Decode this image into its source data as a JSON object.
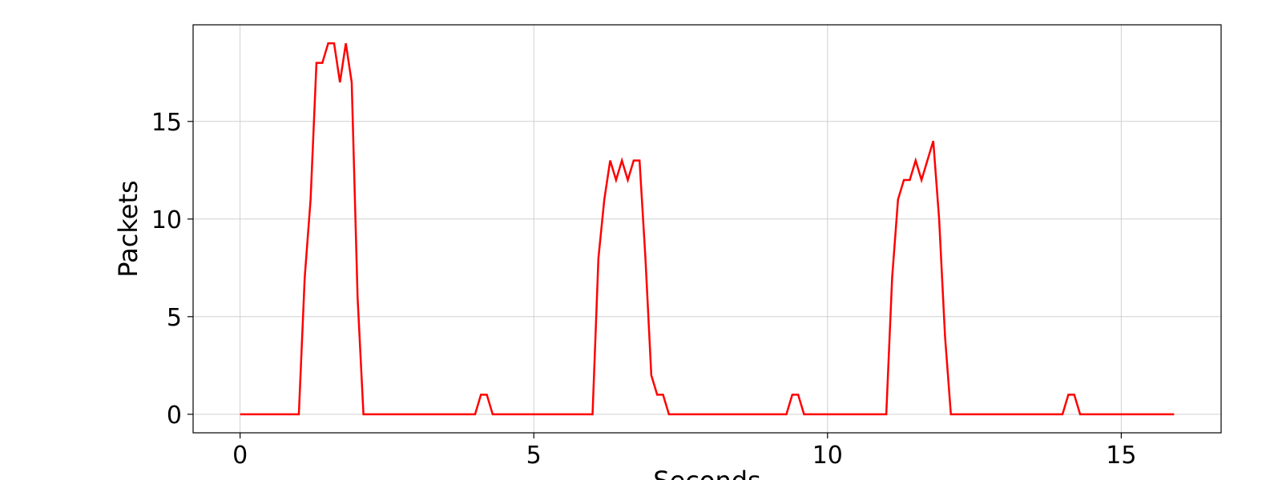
{
  "chart_data": {
    "type": "line",
    "title": "",
    "xlabel": "Seconds",
    "ylabel": "Packets",
    "xlim": [
      -0.8,
      16.7
    ],
    "ylim": [
      -0.95,
      19.95
    ],
    "grid": true,
    "xticks": [
      0,
      5,
      10,
      15
    ],
    "yticks": [
      0,
      5,
      10,
      15
    ],
    "series": [
      {
        "color": "#ff0000",
        "x": [
          0,
          0.1,
          0.2,
          0.3,
          0.4,
          0.5,
          0.6,
          0.7,
          0.8,
          0.9,
          1.0,
          1.1,
          1.2,
          1.3,
          1.4,
          1.5,
          1.6,
          1.7,
          1.8,
          1.9,
          2.0,
          2.1,
          2.2,
          2.3,
          2.4,
          2.5,
          2.6,
          2.7,
          2.8,
          2.9,
          3.0,
          3.1,
          3.2,
          3.3,
          3.4,
          3.5,
          3.6,
          3.7,
          3.8,
          3.9,
          4.0,
          4.1,
          4.2,
          4.3,
          4.4,
          4.5,
          4.6,
          4.7,
          4.8,
          4.9,
          5.0,
          5.1,
          5.2,
          5.3,
          5.4,
          5.5,
          5.6,
          5.7,
          5.8,
          5.9,
          6.0,
          6.1,
          6.2,
          6.3,
          6.4,
          6.5,
          6.6,
          6.7,
          6.8,
          6.9,
          7.0,
          7.1,
          7.2,
          7.3,
          7.4,
          7.5,
          7.6,
          7.7,
          7.8,
          7.9,
          8.0,
          8.1,
          8.2,
          8.3,
          8.4,
          8.5,
          8.6,
          8.7,
          8.8,
          8.9,
          9.0,
          9.1,
          9.2,
          9.3,
          9.4,
          9.5,
          9.6,
          9.7,
          9.8,
          9.9,
          10.0,
          10.1,
          10.2,
          10.3,
          10.4,
          10.5,
          10.6,
          10.7,
          10.8,
          10.9,
          11.0,
          11.1,
          11.2,
          11.3,
          11.4,
          11.5,
          11.6,
          11.7,
          11.8,
          11.9,
          12.0,
          12.1,
          12.2,
          12.3,
          12.4,
          12.5,
          12.6,
          12.7,
          12.8,
          12.9,
          13.0,
          13.1,
          13.2,
          13.3,
          13.4,
          13.5,
          13.6,
          13.7,
          13.8,
          13.9,
          14.0,
          14.1,
          14.2,
          14.3,
          14.4,
          14.5,
          14.6,
          14.7,
          14.8,
          14.9,
          15.0,
          15.1,
          15.2,
          15.3,
          15.4,
          15.5,
          15.6,
          15.7,
          15.8,
          15.9
        ],
        "y": [
          0,
          0,
          0,
          0,
          0,
          0,
          0,
          0,
          0,
          0,
          0,
          7,
          11,
          18,
          18,
          19,
          19,
          17,
          19,
          17,
          6,
          0,
          0,
          0,
          0,
          0,
          0,
          0,
          0,
          0,
          0,
          0,
          0,
          0,
          0,
          0,
          0,
          0,
          0,
          0,
          0,
          1,
          1,
          0,
          0,
          0,
          0,
          0,
          0,
          0,
          0,
          0,
          0,
          0,
          0,
          0,
          0,
          0,
          0,
          0,
          0,
          8,
          11,
          13,
          12,
          13,
          12,
          13,
          13,
          8,
          2,
          1,
          1,
          0,
          0,
          0,
          0,
          0,
          0,
          0,
          0,
          0,
          0,
          0,
          0,
          0,
          0,
          0,
          0,
          0,
          0,
          0,
          0,
          0,
          1,
          1,
          0,
          0,
          0,
          0,
          0,
          0,
          0,
          0,
          0,
          0,
          0,
          0,
          0,
          0,
          0,
          7,
          11,
          12,
          12,
          13,
          12,
          13,
          14,
          10,
          4,
          0,
          0,
          0,
          0,
          0,
          0,
          0,
          0,
          0,
          0,
          0,
          0,
          0,
          0,
          0,
          0,
          0,
          0,
          0,
          0,
          1,
          1,
          0,
          0,
          0,
          0,
          0,
          0,
          0,
          0,
          0,
          0,
          0,
          0,
          0,
          0,
          0,
          0,
          0
        ]
      }
    ]
  }
}
